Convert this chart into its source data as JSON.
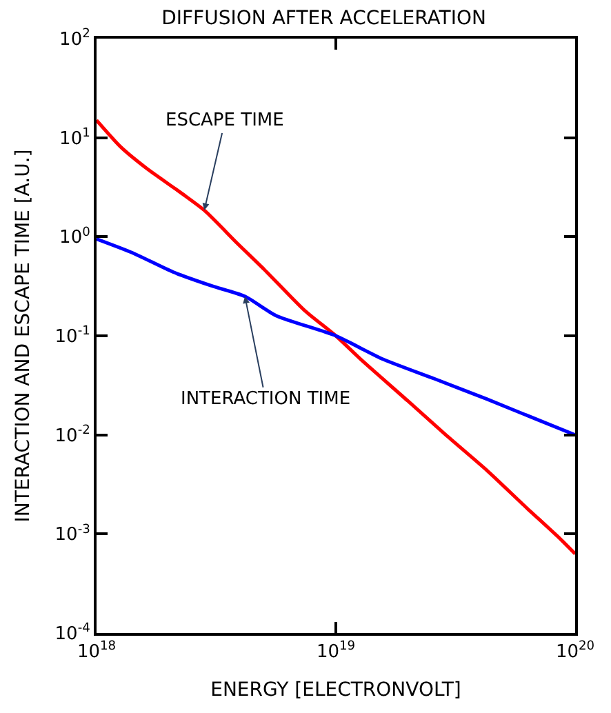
{
  "chart_data": {
    "type": "line",
    "title": "DIFFUSION AFTER ACCELERATION",
    "xlabel": "ENERGY [ELECTRONVOLT]",
    "ylabel": "INTERACTION AND ESCAPE TIME [A.U.]",
    "log": "xy",
    "marker": "none",
    "line_style": "solid",
    "xlim": [
      1e+18,
      1e+20
    ],
    "ylim": [
      0.0001,
      100
    ],
    "xticks": [
      {
        "value": 1e+18,
        "label": "10$^{18}$"
      },
      {
        "value": 1e+19,
        "label": "10$^{19}$"
      },
      {
        "value": 1e+20,
        "label": "10$^{20}$"
      }
    ],
    "yticks": [
      {
        "value": 0.0001,
        "label": "10$^{-4}$"
      },
      {
        "value": 0.001,
        "label": "10$^{-3}$"
      },
      {
        "value": 0.01,
        "label": "10$^{-2}$"
      },
      {
        "value": 0.1,
        "label": "10$^{-1}$"
      },
      {
        "value": 1,
        "label": "10$^{0}$"
      },
      {
        "value": 10,
        "label": "10$^{1}$"
      },
      {
        "value": 100,
        "label": "10$^{2}$"
      }
    ],
    "series": [
      {
        "color": "#ff0000",
        "x": [
          1e+18,
          1.26e+18,
          1.62e+18,
          2.29e+18,
          2.82e+18,
          3.89e+18,
          5.01e+18,
          7.41e+18,
          1e+19,
          1.29e+19,
          2e+19,
          2.88e+19,
          4.27e+19,
          6.17e+19,
          8.51e+19,
          1e+20
        ],
        "values": [
          15,
          8.1,
          4.9,
          2.7,
          1.85,
          0.85,
          0.47,
          0.18,
          0.1,
          0.056,
          0.022,
          0.01,
          0.0044,
          0.0019,
          0.00093,
          0.00063
        ]
      },
      {
        "color": "#0000ff",
        "x": [
          1e+18,
          1.41e+18,
          2.09e+18,
          3.02e+18,
          4.17e+18,
          5.62e+18,
          1e+19,
          1.55e+19,
          2.57e+19,
          4.27e+19,
          7.08e+19,
          1e+20
        ],
        "values": [
          0.95,
          0.69,
          0.44,
          0.32,
          0.25,
          0.16,
          0.1,
          0.059,
          0.037,
          0.023,
          0.014,
          0.01
        ]
      }
    ],
    "annotations": [
      {
        "text": "ESCAPE TIME",
        "x": 2.82e+18,
        "y": 1.85
      },
      {
        "text": "INTERACTION TIME",
        "x": 4.17e+18,
        "y": 0.25
      }
    ]
  }
}
